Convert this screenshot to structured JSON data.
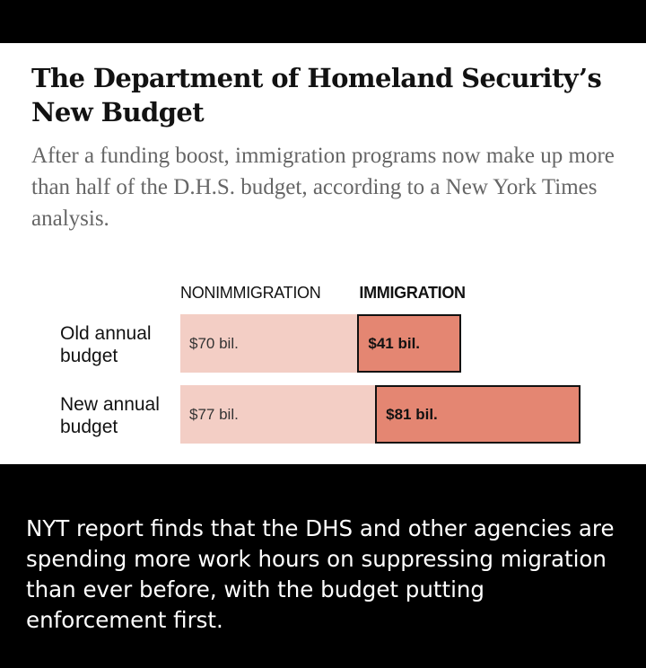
{
  "header": {
    "title": "The Department of Homeland Security’s New Budget",
    "subtitle": "After a funding boost, immigration programs now make up more than half of the D.H.S. budget, according to a New York Times analysis."
  },
  "caption": "NYT report finds that the DHS and other agencies are spending more work hours on suppressing migration than ever before, with the budget putting enforcement first.",
  "colors": {
    "nonimmigration": "#f3cec5",
    "immigration": "#e48672",
    "background_bands": "#000000"
  },
  "chart_data": {
    "type": "bar",
    "orientation": "horizontal",
    "stacked": true,
    "title": "The Department of Homeland Security’s New Budget",
    "categories": [
      "Old annual budget",
      "New annual budget"
    ],
    "unit": "billion dollars",
    "series": [
      {
        "name": "NONIMMIGRATION",
        "values": [
          70,
          77
        ],
        "labels": [
          "$70 bil.",
          "$77 bil."
        ]
      },
      {
        "name": "IMMIGRATION",
        "values": [
          41,
          81
        ],
        "labels": [
          "$41 bil.",
          "$81 bil."
        ],
        "highlighted": true
      }
    ],
    "grid": false,
    "legend": "top (column headers)"
  }
}
